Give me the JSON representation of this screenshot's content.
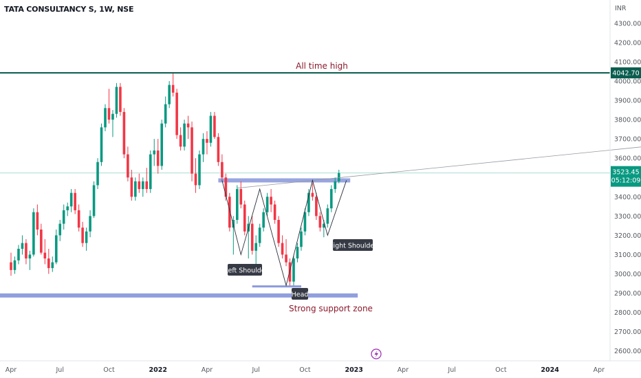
{
  "header": {
    "symbol_title": "TATA CONSULTANCY S, 1W, NSE"
  },
  "chart_data": {
    "type": "candlestick",
    "currency": "INR",
    "y_ticks": [
      "4300.00",
      "4200.00",
      "4100.00",
      "4000.00",
      "3900.00",
      "3800.00",
      "3700.00",
      "3600.00",
      "3400.00",
      "3300.00",
      "3200.00",
      "3100.00",
      "3000.00",
      "2900.00",
      "2800.00",
      "2700.00",
      "2600.00"
    ],
    "x_ticks": [
      {
        "label": "Apr",
        "bold": false
      },
      {
        "label": "Jul",
        "bold": false
      },
      {
        "label": "Oct",
        "bold": false
      },
      {
        "label": "2022",
        "bold": true
      },
      {
        "label": "Apr",
        "bold": false
      },
      {
        "label": "Jul",
        "bold": false
      },
      {
        "label": "Oct",
        "bold": false
      },
      {
        "label": "2023",
        "bold": true
      },
      {
        "label": "Apr",
        "bold": false
      },
      {
        "label": "Jul",
        "bold": false
      },
      {
        "label": "Oct",
        "bold": false
      },
      {
        "label": "2024",
        "bold": true
      },
      {
        "label": "Apr",
        "bold": false
      }
    ],
    "x_tick_weeks": [
      0,
      13,
      26,
      39,
      52,
      65,
      78,
      91,
      104,
      117,
      130,
      143,
      156
    ],
    "first_week_label": "Apr 2021",
    "ohlc": [
      [
        3060,
        3110,
        2990,
        3020
      ],
      [
        3020,
        3090,
        3000,
        3070
      ],
      [
        3070,
        3150,
        3050,
        3130
      ],
      [
        3130,
        3200,
        3100,
        3160
      ],
      [
        3160,
        3180,
        3050,
        3080
      ],
      [
        3080,
        3120,
        3020,
        3100
      ],
      [
        3100,
        3340,
        3090,
        3320
      ],
      [
        3320,
        3360,
        3200,
        3230
      ],
      [
        3230,
        3260,
        3100,
        3110
      ],
      [
        3110,
        3180,
        3050,
        3080
      ],
      [
        3080,
        3130,
        3000,
        3030
      ],
      [
        3030,
        3090,
        3010,
        3060
      ],
      [
        3060,
        3230,
        3050,
        3200
      ],
      [
        3200,
        3280,
        3170,
        3260
      ],
      [
        3260,
        3360,
        3230,
        3330
      ],
      [
        3330,
        3370,
        3300,
        3350
      ],
      [
        3350,
        3440,
        3320,
        3420
      ],
      [
        3420,
        3440,
        3310,
        3330
      ],
      [
        3330,
        3360,
        3220,
        3240
      ],
      [
        3240,
        3270,
        3140,
        3160
      ],
      [
        3160,
        3240,
        3120,
        3220
      ],
      [
        3220,
        3330,
        3190,
        3300
      ],
      [
        3300,
        3480,
        3290,
        3460
      ],
      [
        3460,
        3600,
        3440,
        3580
      ],
      [
        3580,
        3780,
        3560,
        3760
      ],
      [
        3760,
        3880,
        3740,
        3860
      ],
      [
        3860,
        3960,
        3780,
        3800
      ],
      [
        3800,
        3850,
        3710,
        3830
      ],
      [
        3830,
        3990,
        3810,
        3970
      ],
      [
        3970,
        3990,
        3820,
        3840
      ],
      [
        3840,
        3860,
        3600,
        3620
      ],
      [
        3620,
        3660,
        3480,
        3500
      ],
      [
        3500,
        3540,
        3380,
        3400
      ],
      [
        3400,
        3500,
        3380,
        3480
      ],
      [
        3480,
        3520,
        3420,
        3440
      ],
      [
        3440,
        3500,
        3400,
        3480
      ],
      [
        3480,
        3550,
        3420,
        3440
      ],
      [
        3440,
        3640,
        3420,
        3620
      ],
      [
        3620,
        3700,
        3560,
        3640
      ],
      [
        3640,
        3700,
        3520,
        3560
      ],
      [
        3560,
        3800,
        3540,
        3780
      ],
      [
        3780,
        3920,
        3760,
        3880
      ],
      [
        3880,
        4000,
        3860,
        3980
      ],
      [
        3980,
        4043,
        3920,
        3940
      ],
      [
        3940,
        3960,
        3700,
        3720
      ],
      [
        3720,
        3760,
        3640,
        3660
      ],
      [
        3660,
        3800,
        3640,
        3780
      ],
      [
        3780,
        3820,
        3700,
        3760
      ],
      [
        3760,
        3790,
        3480,
        3520
      ],
      [
        3520,
        3600,
        3420,
        3460
      ],
      [
        3460,
        3640,
        3440,
        3620
      ],
      [
        3620,
        3730,
        3580,
        3700
      ],
      [
        3700,
        3740,
        3620,
        3680
      ],
      [
        3680,
        3840,
        3660,
        3820
      ],
      [
        3820,
        3840,
        3700,
        3710
      ],
      [
        3710,
        3730,
        3560,
        3580
      ],
      [
        3580,
        3620,
        3480,
        3500
      ],
      [
        3500,
        3520,
        3380,
        3400
      ],
      [
        3400,
        3420,
        3220,
        3240
      ],
      [
        3240,
        3300,
        3100,
        3280
      ],
      [
        3280,
        3460,
        3260,
        3440
      ],
      [
        3440,
        3480,
        3340,
        3360
      ],
      [
        3360,
        3380,
        3200,
        3220
      ],
      [
        3220,
        3300,
        3080,
        3260
      ],
      [
        3260,
        3300,
        3100,
        3120
      ],
      [
        3120,
        3200,
        3040,
        3160
      ],
      [
        3160,
        3260,
        3140,
        3240
      ],
      [
        3240,
        3340,
        3220,
        3320
      ],
      [
        3320,
        3420,
        3300,
        3400
      ],
      [
        3400,
        3440,
        3320,
        3360
      ],
      [
        3360,
        3380,
        3260,
        3280
      ],
      [
        3280,
        3300,
        3140,
        3160
      ],
      [
        3160,
        3200,
        3080,
        3100
      ],
      [
        3100,
        3180,
        3040,
        3060
      ],
      [
        3060,
        3080,
        2940,
        2960
      ],
      [
        2960,
        3100,
        2940,
        3080
      ],
      [
        3080,
        3160,
        3060,
        3140
      ],
      [
        3140,
        3240,
        3120,
        3220
      ],
      [
        3220,
        3340,
        3200,
        3320
      ],
      [
        3320,
        3440,
        3300,
        3420
      ],
      [
        3420,
        3470,
        3380,
        3400
      ],
      [
        3400,
        3420,
        3280,
        3300
      ],
      [
        3300,
        3320,
        3220,
        3240
      ],
      [
        3240,
        3280,
        3190,
        3260
      ],
      [
        3260,
        3360,
        3240,
        3340
      ],
      [
        3340,
        3460,
        3320,
        3440
      ],
      [
        3440,
        3500,
        3420,
        3480
      ],
      [
        3480,
        3540,
        3470,
        3523
      ]
    ],
    "levels": {
      "all_time_high": 4042.7,
      "neckline": 3485,
      "current_price": 3523.45,
      "support_zone": 2888,
      "head_low_line": 2935
    },
    "price_badges": {
      "high_label": "4042.70",
      "last_price": "3523.45",
      "countdown": "05:12:09"
    },
    "head_shoulders_zigzag": [
      [
        56,
        3485
      ],
      [
        61,
        3100
      ],
      [
        66,
        3440
      ],
      [
        73,
        2940
      ],
      [
        80,
        3485
      ],
      [
        84,
        3200
      ],
      [
        89,
        3485
      ]
    ],
    "trend_line": [
      [
        60,
        3445
      ],
      [
        183,
        3690
      ]
    ],
    "annotations": {
      "all_time_high": "All time high",
      "left_shoulder": "Left Shoulde",
      "head": "Head",
      "right_shoulder": "Right Shoulder",
      "support": "Strong support zone"
    },
    "colors": {
      "up": "#089981",
      "down": "#f23645",
      "ath_line": "#0b5e4f",
      "zone": "#7e8ed8",
      "annotation_text": "#8b1a2b"
    },
    "grid": false
  }
}
